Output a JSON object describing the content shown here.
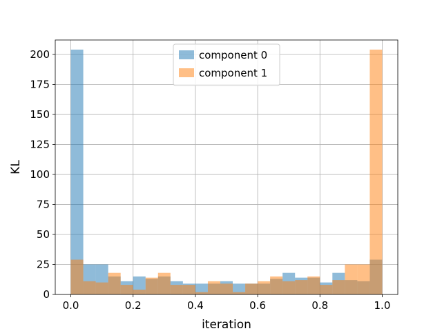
{
  "chart_data": {
    "type": "bar",
    "title": "",
    "xlabel": "iteration",
    "ylabel": "KL",
    "xlim": [
      -0.05,
      1.05
    ],
    "ylim": [
      0,
      212
    ],
    "xticks": [
      "0.0",
      "0.2",
      "0.4",
      "0.6",
      "0.8",
      "1.0"
    ],
    "xtick_values": [
      0,
      0.2,
      0.4,
      0.6,
      0.8,
      1.0
    ],
    "yticks": [
      "0",
      "25",
      "50",
      "75",
      "100",
      "125",
      "150",
      "175",
      "200"
    ],
    "ytick_values": [
      0,
      25,
      50,
      75,
      100,
      125,
      150,
      175,
      200
    ],
    "grid": true,
    "legend_position": "top-center",
    "bin_edges": [
      0.0,
      0.04,
      0.08,
      0.12,
      0.16,
      0.2,
      0.24,
      0.28,
      0.32,
      0.36,
      0.4,
      0.44,
      0.48,
      0.52,
      0.56,
      0.6,
      0.64,
      0.68,
      0.72,
      0.76,
      0.8,
      0.84,
      0.88,
      0.92,
      0.96,
      1.0
    ],
    "series": [
      {
        "name": "component 0",
        "color": "#1f77b4",
        "opacity": 0.5,
        "values": [
          204,
          25,
          25,
          15,
          11,
          15,
          13,
          15,
          11,
          9,
          9,
          9,
          11,
          9,
          9,
          9,
          13,
          18,
          14,
          14,
          10,
          18,
          12,
          11,
          29
        ]
      },
      {
        "name": "component 1",
        "color": "#ff7f0e",
        "opacity": 0.5,
        "values": [
          29,
          11,
          10,
          18,
          8,
          4,
          14,
          18,
          8,
          8,
          2,
          11,
          9,
          2,
          9,
          11,
          15,
          11,
          12,
          15,
          8,
          12,
          25,
          25,
          204
        ]
      }
    ]
  }
}
